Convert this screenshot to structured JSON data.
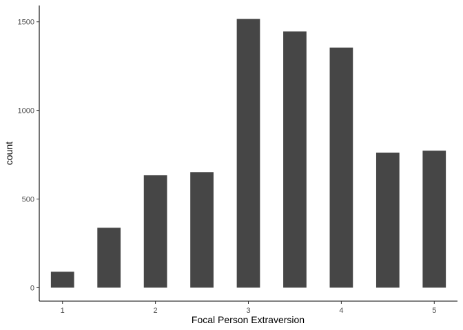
{
  "chart_data": {
    "type": "bar",
    "x": [
      1.0,
      1.5,
      2.0,
      2.5,
      3.0,
      3.5,
      4.0,
      4.5,
      5.0
    ],
    "values": [
      90,
      338,
      634,
      652,
      1516,
      1446,
      1354,
      762,
      773
    ],
    "xlabel": "Focal Person Extraversion",
    "ylabel": "count",
    "x_ticks": [
      "1",
      "2",
      "3",
      "4",
      "5"
    ],
    "y_ticks": [
      "0",
      "500",
      "1000",
      "1500"
    ],
    "xlim": [
      0.75,
      5.25
    ],
    "ylim": [
      -76,
      1592
    ],
    "grid": false,
    "bar_color": "#464646",
    "axis_color": "#000000"
  }
}
